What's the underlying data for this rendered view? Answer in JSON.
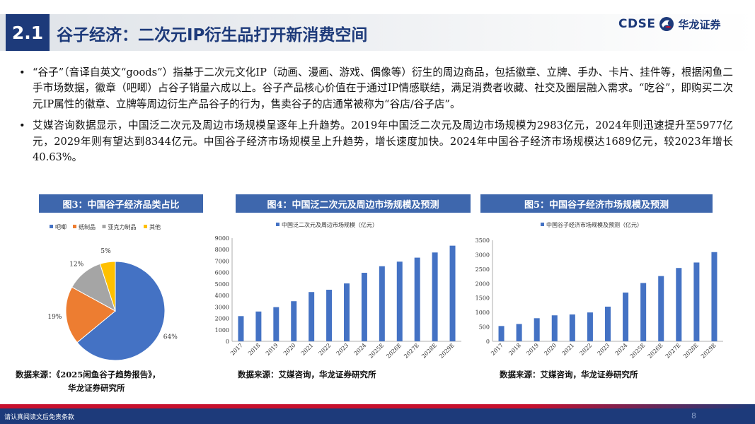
{
  "header": {
    "section": "2.1",
    "title": "谷子经济：二次元IP衍生品打开新消费空间",
    "logo_en": "CDSE",
    "logo_cn": "华龙证券"
  },
  "bullets": [
    "“谷子”（音译自英文“goods”）指基于二次元文化IP（动画、漫画、游戏、偶像等）衍生的周边商品，包括徽章、立牌、手办、卡片、挂件等，根据闲鱼二手市场数据，徽章（吧唧）占谷子销量六成以上。谷子产品核心价值在于通过IP情感联结，满足消费者收藏、社交及圈层融入需求。“吃谷”，即购买二次元IP属性的徽章、立牌等周边衍生产品谷子的行为，售卖谷子的店通常被称为“谷店/谷子店”。",
    "艾媒咨询数据显示，中国泛二次元及周边市场规模呈逐年上升趋势。2019年中国泛二次元及周边市场规模为2983亿元，2024年则迅速提升至5977亿元，2029年则有望达到8344亿元。中国谷子经济市场规模呈上升趋势，增长速度加快。2024年中国谷子经济市场规模达1689亿元，较2023年增长40.63%。"
  ],
  "figures": {
    "fig3_title": "图3：中国谷子经济品类占比",
    "fig4_title": "图4：中国泛二次元及周边市场规模及预测",
    "fig5_title": "图5：中国谷子经济市场规模及预测"
  },
  "sources": {
    "fig3_line1": "数据来源：《2025闲鱼谷子趋势报告》，",
    "fig3_line2": "华龙证券研究所",
    "fig4": "数据来源：艾媒咨询，华龙证券研究所",
    "fig5": "数据来源：艾媒咨询，华龙证券研究所"
  },
  "footer": {
    "disclaimer": "请认真阅读文后免责条款",
    "page": "8"
  },
  "colors": {
    "navy": "#1d3a7a",
    "bar": "#4472c4",
    "pie": [
      "#4472c4",
      "#ed7d31",
      "#a5a5a5",
      "#ffc000"
    ]
  },
  "chart_data": [
    {
      "type": "pie",
      "categories": [
        "吧唧",
        "纸制品",
        "亚克力制品",
        "其他"
      ],
      "values": [
        64,
        19,
        12,
        5
      ],
      "labels": [
        "64%",
        "19%",
        "12%",
        "5%"
      ],
      "legend": "top"
    },
    {
      "type": "bar",
      "categories": [
        "2017",
        "2018",
        "2019",
        "2020",
        "2021",
        "2022",
        "2023",
        "2024",
        "2025E",
        "2026E",
        "2027E",
        "2028E",
        "2029E"
      ],
      "series": [
        {
          "name": "中国泛二次元及周边市场规模（亿元）",
          "values": [
            2200,
            2600,
            2983,
            3500,
            4300,
            4500,
            5050,
            5977,
            6550,
            6950,
            7300,
            7750,
            8344
          ]
        }
      ],
      "ylim": [
        0,
        9000
      ],
      "yticks": [
        0,
        1000,
        2000,
        3000,
        4000,
        5000,
        6000,
        7000,
        8000,
        9000
      ],
      "legend": "top"
    },
    {
      "type": "bar",
      "categories": [
        "2017",
        "2018",
        "2019",
        "2020",
        "2021",
        "2022",
        "2023",
        "2024",
        "2025E",
        "2026E",
        "2027E",
        "2028E",
        "2029E"
      ],
      "series": [
        {
          "name": "中国谷子经济市场规模及预测（亿元）",
          "values": [
            530,
            600,
            800,
            900,
            930,
            1000,
            1201,
            1689,
            2020,
            2260,
            2540,
            2730,
            3090
          ]
        }
      ],
      "ylim": [
        0,
        3500
      ],
      "yticks": [
        0,
        500,
        1000,
        1500,
        2000,
        2500,
        3000,
        3500
      ],
      "legend": "top"
    }
  ]
}
